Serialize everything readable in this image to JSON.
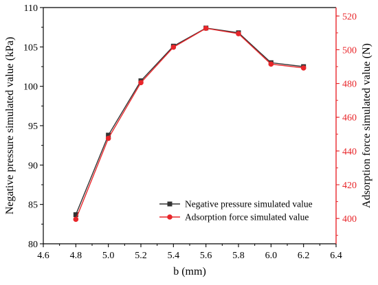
{
  "chart_data": {
    "type": "line",
    "title": "",
    "xlabel": "b (mm)",
    "ylabel_left": "Negative pressure simulated value (kPa)",
    "ylabel_right": "Adsorption force simulated value (N)",
    "xlim": [
      4.6,
      6.4
    ],
    "xticks": [
      "4.6",
      "4.8",
      "5.0",
      "5.2",
      "5.4",
      "5.6",
      "5.8",
      "6.0",
      "6.2",
      "6.4"
    ],
    "ylim_left": [
      80,
      110
    ],
    "yticks_left": [
      "80",
      "85",
      "90",
      "95",
      "100",
      "105",
      "110"
    ],
    "ylim_right": [
      385,
      525
    ],
    "yticks_right": [
      "400",
      "420",
      "440",
      "460",
      "480",
      "500",
      "520"
    ],
    "grid": false,
    "legend_position": "bottom-right",
    "x": [
      4.8,
      5.0,
      5.2,
      5.4,
      5.6,
      5.8,
      6.0,
      6.2
    ],
    "series": [
      {
        "name": "Negative pressure simulated value",
        "axis": "left",
        "marker": "square",
        "color": "#333333",
        "values": [
          83.7,
          93.8,
          100.7,
          105.1,
          107.4,
          106.8,
          103.0,
          102.5
        ]
      },
      {
        "name": "Adsorption force simulated value",
        "axis": "right",
        "marker": "circle",
        "color": "#e8262a",
        "values": [
          399.5,
          447.5,
          480.5,
          501.5,
          512.7,
          509.5,
          491.5,
          489.2
        ]
      }
    ],
    "right_axis_color": "#e8262a"
  }
}
